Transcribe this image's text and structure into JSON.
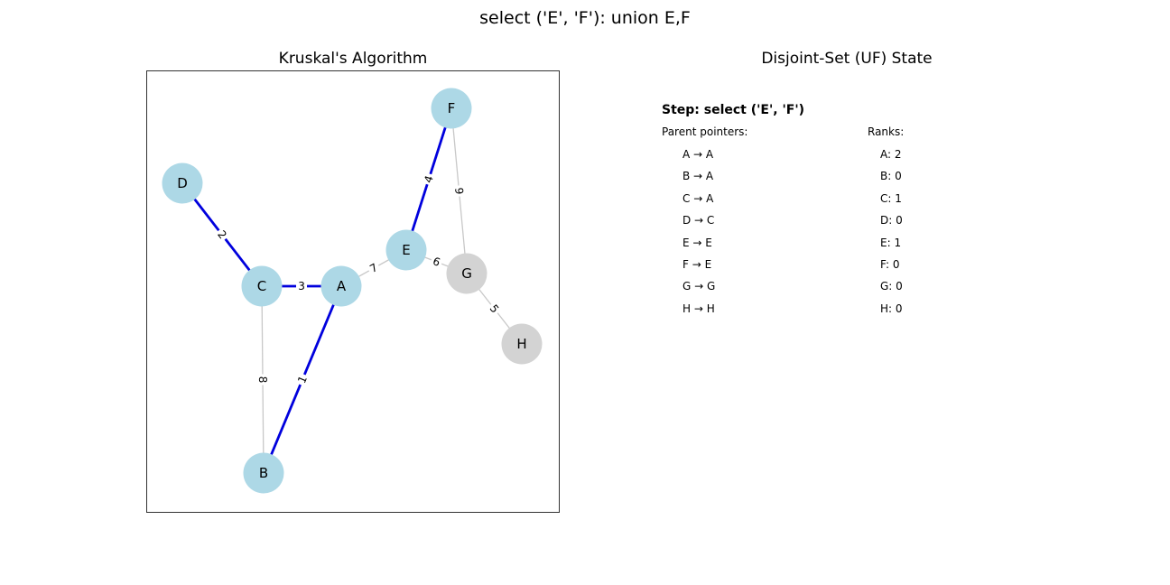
{
  "figure_title": "select ('E', 'F'): union E,F",
  "graph_panel": {
    "title": "Kruskal's Algorithm",
    "colors": {
      "selected_edge": "#0000dd",
      "unselected_edge": "#c8c8c8",
      "node_in_tree": "#add8e6",
      "node_not_in_tree": "#d3d3d3"
    },
    "nodes": [
      {
        "id": "A",
        "in_tree": true
      },
      {
        "id": "B",
        "in_tree": true
      },
      {
        "id": "C",
        "in_tree": true
      },
      {
        "id": "D",
        "in_tree": true
      },
      {
        "id": "E",
        "in_tree": true
      },
      {
        "id": "F",
        "in_tree": true
      },
      {
        "id": "G",
        "in_tree": false
      },
      {
        "id": "H",
        "in_tree": false
      }
    ],
    "edges": [
      {
        "u": "A",
        "v": "B",
        "weight": "1",
        "selected": true
      },
      {
        "u": "D",
        "v": "C",
        "weight": "2",
        "selected": true
      },
      {
        "u": "C",
        "v": "A",
        "weight": "3",
        "selected": true
      },
      {
        "u": "E",
        "v": "F",
        "weight": "4",
        "selected": true
      },
      {
        "u": "G",
        "v": "H",
        "weight": "5",
        "selected": false
      },
      {
        "u": "E",
        "v": "G",
        "weight": "6",
        "selected": false
      },
      {
        "u": "A",
        "v": "E",
        "weight": "7",
        "selected": false
      },
      {
        "u": "C",
        "v": "B",
        "weight": "8",
        "selected": false
      },
      {
        "u": "F",
        "v": "G",
        "weight": "9",
        "selected": false
      }
    ]
  },
  "uf_panel": {
    "title": "Disjoint-Set (UF) State",
    "step": "Step: select ('E', 'F')",
    "parent_label": "Parent pointers:",
    "ranks_label": "Ranks:",
    "parents": [
      "A → A",
      "B → A",
      "C → A",
      "D → C",
      "E → E",
      "F → E",
      "G → G",
      "H → H"
    ],
    "ranks": [
      "A: 2",
      "B: 0",
      "C: 1",
      "D: 0",
      "E: 1",
      "F: 0",
      "G: 0",
      "H: 0"
    ]
  }
}
